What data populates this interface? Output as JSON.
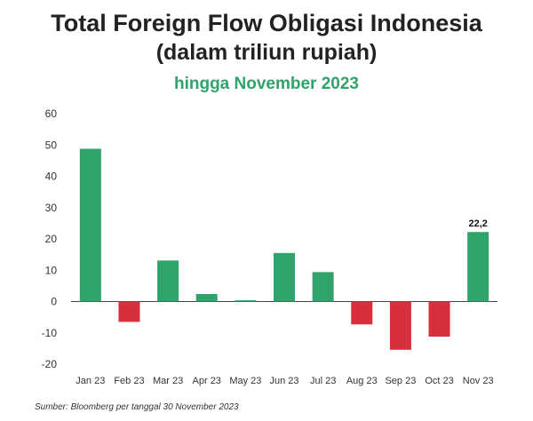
{
  "header": {
    "title": "Total Foreign Flow Obligasi Indonesia",
    "subtitle": "(dalam triliun rupiah)",
    "period": "hingga November 2023"
  },
  "colors": {
    "positive": "#2ea36a",
    "negative": "#d72f3b",
    "period_text": "#2ea36a",
    "axis_text": "#333333"
  },
  "chart_data": {
    "type": "bar",
    "categories": [
      "Jan 23",
      "Feb 23",
      "Mar 23",
      "Apr 23",
      "May 23",
      "Jun 23",
      "Jul 23",
      "Aug 23",
      "Sep 23",
      "Oct 23",
      "Nov 23"
    ],
    "values": [
      48.8,
      -6.5,
      13.1,
      2.4,
      0.4,
      15.5,
      9.4,
      -7.3,
      -15.4,
      -11.2,
      22.2
    ],
    "data_labels": [
      {
        "category": "Nov 23",
        "text": "22,2"
      }
    ],
    "title": "Total Foreign Flow Obligasi Indonesia",
    "subtitle": "(dalam triliun rupiah)",
    "xlabel": "",
    "ylabel": "",
    "ylim": [
      -20,
      60
    ],
    "yticks": [
      -20,
      -10,
      0,
      10,
      20,
      30,
      40,
      50,
      60
    ],
    "grid": false,
    "legend": "none"
  },
  "footer": {
    "source": "Sumber: Bloomberg per tanggal 30 November 2023"
  }
}
